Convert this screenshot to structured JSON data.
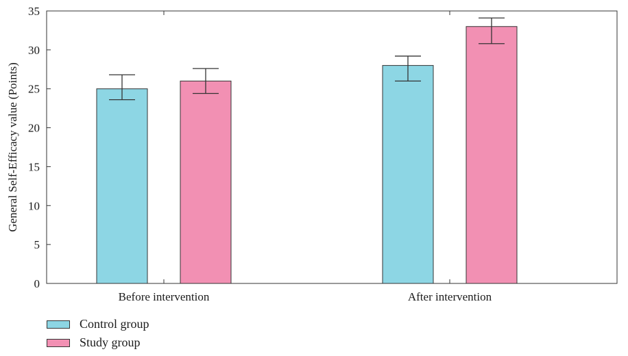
{
  "chart_data": {
    "type": "bar",
    "title": "",
    "xlabel": "",
    "ylabel": "General Self-Efficacy value (Points)",
    "ylim": [
      0,
      35
    ],
    "yticks": [
      "0",
      "5",
      "10",
      "15",
      "20",
      "25",
      "30",
      "35"
    ],
    "categories": [
      "Before intervention",
      "After intervention"
    ],
    "series": [
      {
        "name": "Control group",
        "color": "#8dd6e4",
        "values": [
          25,
          28
        ],
        "error_low": [
          23.6,
          26.0
        ],
        "error_high": [
          26.8,
          29.2
        ]
      },
      {
        "name": "Study group",
        "color": "#f290b3",
        "values": [
          26,
          33
        ],
        "error_low": [
          24.4,
          30.8
        ],
        "error_high": [
          27.6,
          34.1
        ]
      }
    ],
    "grid": false,
    "legend_position": "bottom-left"
  }
}
